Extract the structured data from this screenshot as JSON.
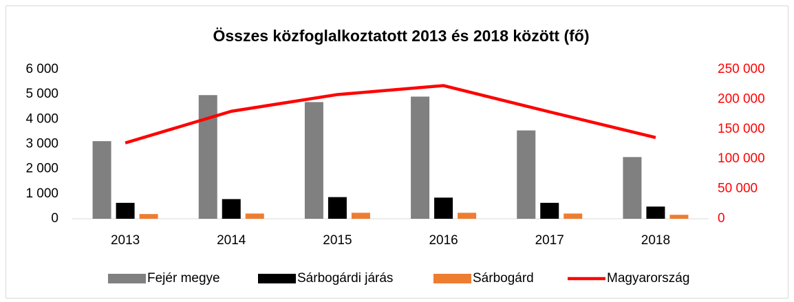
{
  "chart_data": {
    "type": "bar",
    "title": "Összes közfoglalkoztatott 2013 és 2018 között (fő)",
    "categories": [
      "2013",
      "2014",
      "2015",
      "2016",
      "2017",
      "2018"
    ],
    "series": [
      {
        "name": "Fejér megye",
        "color": "#808080",
        "values": [
          3120,
          4970,
          4690,
          4910,
          3550,
          2480
        ]
      },
      {
        "name": "Sárbogárdi járás",
        "color": "#000000",
        "values": [
          640,
          790,
          870,
          850,
          640,
          490
        ]
      },
      {
        "name": "Sárbogárd",
        "color": "#ed7d31",
        "values": [
          190,
          210,
          240,
          240,
          210,
          160
        ]
      },
      {
        "name": "Magyarország",
        "color": "#ff0000",
        "type": "line",
        "axis": "y2",
        "values": [
          127000,
          180000,
          208000,
          223000,
          179000,
          136000
        ]
      }
    ],
    "ylim": [
      0,
      6000
    ],
    "yticks": [
      0,
      {
        "value": 1000,
        "label": "1 000"
      },
      {
        "value": 2000,
        "label": "2 000"
      },
      {
        "value": 3000,
        "label": "3 000"
      },
      {
        "value": 4000,
        "label": "4 000"
      },
      {
        "value": 5000,
        "label": "5 000"
      },
      {
        "value": 6000,
        "label": "6 000"
      }
    ],
    "y2lim": [
      0,
      250000
    ],
    "y2ticks": [
      0,
      {
        "value": 50000,
        "label": "50 000"
      },
      {
        "value": 100000,
        "label": "100 000"
      },
      {
        "value": 150000,
        "label": "150 000"
      },
      {
        "value": 200000,
        "label": "200 000"
      },
      {
        "value": 250000,
        "label": "250 000"
      }
    ],
    "y2_color": "#ff0000",
    "legend": "bottom"
  }
}
